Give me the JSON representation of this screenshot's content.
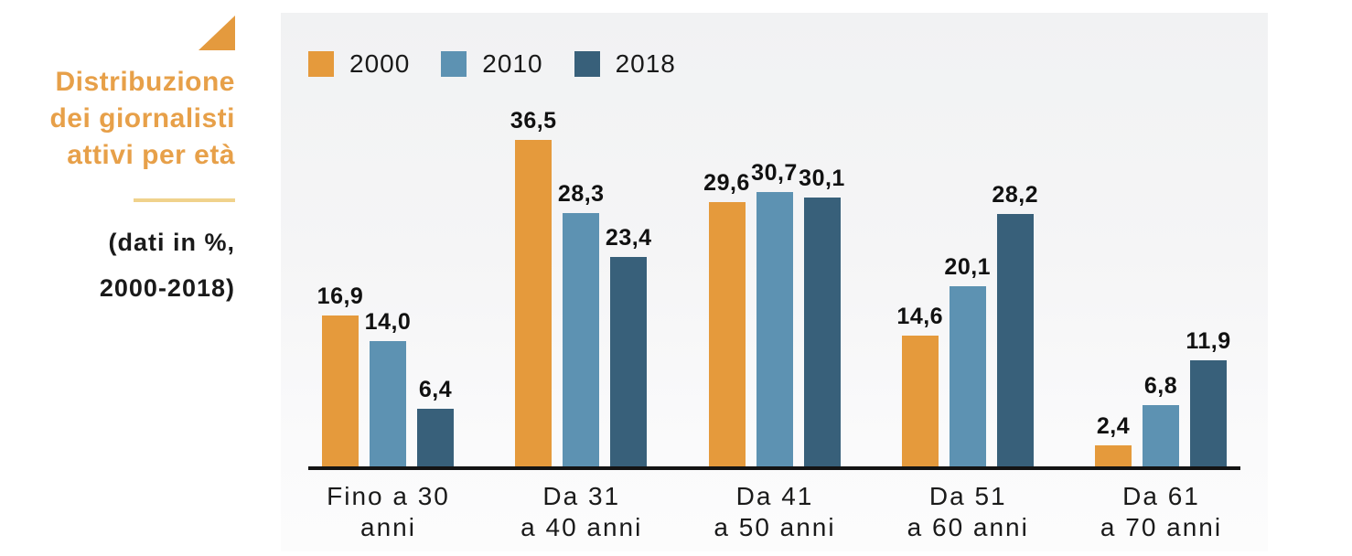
{
  "sidebar": {
    "title_lines": [
      "Distribuzione",
      "dei giornalisti",
      "attivi per età"
    ],
    "subtitle_lines": [
      "(dati in %,",
      "2000-2018)"
    ],
    "accent_color": "#E49A3E",
    "divider_color": "#F0D28C"
  },
  "chart_data": {
    "type": "bar",
    "title": "Distribuzione dei giornalisti attivi per età",
    "subtitle": "(dati in %, 2000-2018)",
    "unit": "%",
    "value_decimal_separator": ",",
    "grid": false,
    "legend_position": "top-left",
    "ylim": [
      0,
      37
    ],
    "categories": [
      "Fino a 30 anni",
      "Da 31 a 40 anni",
      "Da 41 a 50 anni",
      "Da 51 a 60 anni",
      "Da 61 a 70 anni"
    ],
    "category_lines": [
      [
        "Fino a 30",
        "anni"
      ],
      [
        "Da 31",
        "a 40 anni"
      ],
      [
        "Da 41",
        "a 50 anni"
      ],
      [
        "Da 51",
        "a 60 anni"
      ],
      [
        "Da 61",
        "a 70 anni"
      ]
    ],
    "series": [
      {
        "name": "2000",
        "color": "#E59A3C",
        "values": [
          16.9,
          36.5,
          29.6,
          14.6,
          2.4
        ],
        "labels": [
          "16,9",
          "36,5",
          "29,6",
          "14,6",
          "2,4"
        ]
      },
      {
        "name": "2010",
        "color": "#5D92B2",
        "values": [
          14.0,
          28.3,
          30.7,
          20.1,
          6.8
        ],
        "labels": [
          "14,0",
          "28,3",
          "30,7",
          "20,1",
          "6,8"
        ]
      },
      {
        "name": "2018",
        "color": "#38607A",
        "values": [
          6.4,
          23.4,
          30.1,
          28.2,
          11.9
        ],
        "labels": [
          "6,4",
          "23,4",
          "30,1",
          "28,2",
          "11,9"
        ]
      }
    ]
  }
}
